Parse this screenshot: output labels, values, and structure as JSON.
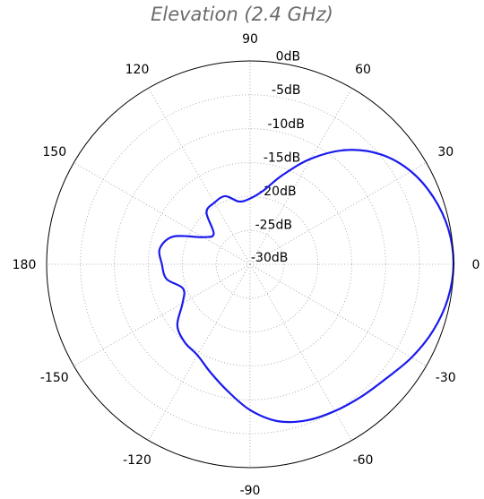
{
  "chart_data": {
    "type": "polar-line",
    "title": "Elevation (2.4 GHz)",
    "radial_unit": "dB",
    "radial_range": [
      -30,
      0
    ],
    "radial_ticks": [
      {
        "value": 0,
        "label": "0dB"
      },
      {
        "value": -5,
        "label": "-5dB"
      },
      {
        "value": -10,
        "label": "-10dB"
      },
      {
        "value": -15,
        "label": "-15dB"
      },
      {
        "value": -20,
        "label": "-20dB"
      },
      {
        "value": -25,
        "label": "-25dB"
      },
      {
        "value": -30,
        "label": "-30dB"
      }
    ],
    "angle_ticks": [
      {
        "deg": 0,
        "label": "0"
      },
      {
        "deg": 30,
        "label": "30"
      },
      {
        "deg": 60,
        "label": "60"
      },
      {
        "deg": 90,
        "label": "90"
      },
      {
        "deg": 120,
        "label": "120"
      },
      {
        "deg": 150,
        "label": "150"
      },
      {
        "deg": 180,
        "label": "180"
      },
      {
        "deg": -150,
        "label": "-150"
      },
      {
        "deg": -120,
        "label": "-120"
      },
      {
        "deg": -90,
        "label": "-90"
      },
      {
        "deg": -60,
        "label": "-60"
      },
      {
        "deg": -30,
        "label": "-30"
      }
    ],
    "grid": true,
    "grid_style": "dotted",
    "series": [
      {
        "color": "#1a1aee",
        "angle_deg": [
          0,
          10,
          20,
          30,
          40,
          50,
          60,
          70,
          80,
          90,
          100,
          110,
          120,
          130,
          140,
          150,
          160,
          170,
          180,
          190,
          200,
          210,
          220,
          230,
          240,
          250,
          260,
          270,
          280,
          290,
          300,
          310,
          320,
          330,
          340,
          350,
          360
        ],
        "gain_db": [
          0.0,
          -0.3,
          -1.2,
          -2.6,
          -4.8,
          -8.0,
          -12.0,
          -16.0,
          -19.0,
          -20.3,
          -20.6,
          -19.3,
          -19.5,
          -20.0,
          -23.0,
          -22.0,
          -18.0,
          -16.5,
          -17.0,
          -17.5,
          -19.5,
          -18.5,
          -16.0,
          -15.0,
          -14.5,
          -13.0,
          -11.0,
          -8.5,
          -6.5,
          -5.5,
          -5.0,
          -4.5,
          -3.8,
          -2.5,
          -1.3,
          -0.4,
          0.0
        ]
      }
    ]
  }
}
